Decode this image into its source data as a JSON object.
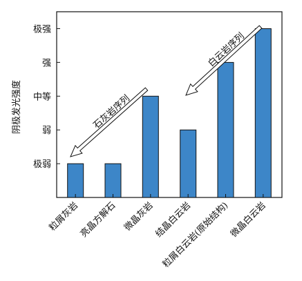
{
  "chart_data": {
    "type": "bar",
    "title": "",
    "xlabel": "",
    "ylabel": "阴极发光强度",
    "categories": [
      "粒屑灰岩",
      "亮晶方解石",
      "微晶灰岩",
      "结晶白云岩",
      "粒屑白云岩(原始结构)",
      "微晶白云岩"
    ],
    "values": [
      1,
      1,
      3,
      2,
      4,
      5
    ],
    "ylim": [
      0,
      5.5
    ],
    "y_ticks": [
      {
        "value": 1,
        "label": "极弱"
      },
      {
        "value": 2,
        "label": "弱"
      },
      {
        "value": 3,
        "label": "中等"
      },
      {
        "value": 4,
        "label": "强"
      },
      {
        "value": 5,
        "label": "极强"
      }
    ],
    "bar_color": "#3d86c8",
    "grid": false,
    "annotations": [
      {
        "text": "石灰岩序列",
        "direction": "decreasing",
        "from_category": 2,
        "to_category": 0
      },
      {
        "text": "白云岩序列",
        "direction": "decreasing",
        "from_category": 5,
        "to_category": 3
      }
    ]
  }
}
